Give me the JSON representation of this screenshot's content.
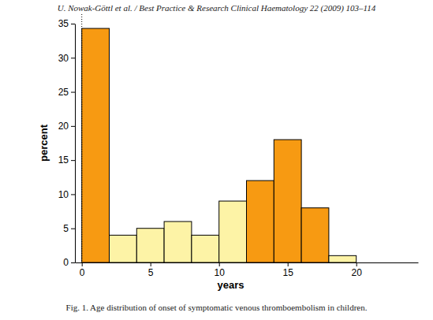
{
  "header": "U. Nowak-Göttl et al. / Best Practice & Research Clinical Haematology 22 (2009) 103–114",
  "chart_data": {
    "type": "histogram",
    "caption": "Fig. 1. Age distribution of onset of symptomatic venous thromboembolism in children.",
    "xlabel": "years",
    "ylabel": "percent",
    "bins": [
      0,
      2,
      4,
      6,
      8,
      10,
      12,
      14,
      16,
      18,
      20
    ],
    "values": [
      34.3,
      4,
      5,
      6,
      4,
      9,
      12,
      18,
      8,
      1
    ],
    "colors": [
      "#f79a12",
      "#fdf3a6",
      "#fdf3a6",
      "#fdf3a6",
      "#fdf3a6",
      "#fdf3a6",
      "#f79a12",
      "#f79a12",
      "#f79a12",
      "#fdf3a6"
    ],
    "xlim": [
      -0.5,
      24.5
    ],
    "ylim": [
      0,
      35
    ],
    "xticks": [
      0,
      5,
      10,
      15,
      20
    ],
    "yticks": [
      0,
      5,
      10,
      15,
      20,
      25,
      30,
      35
    ]
  }
}
